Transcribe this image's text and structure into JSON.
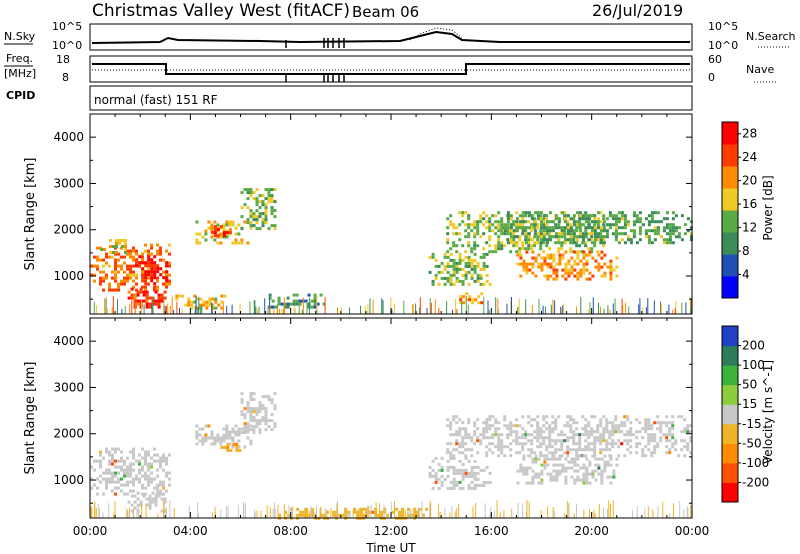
{
  "header": {
    "station": "Christmas Valley West (fitACF)",
    "beam": "Beam 06",
    "date": "26/Jul/2019"
  },
  "panels": {
    "nsky": {
      "label": "N.Sky",
      "tick_top": "10^5",
      "tick_bottom": "10^0",
      "right_label": "N.Search",
      "right_tick_top": "10^5",
      "right_tick_bottom": "10^0"
    },
    "freq": {
      "label_line1": "Freq.",
      "label_line2": "[MHz]",
      "tick_top": "18",
      "tick_bottom": "8",
      "right_label": "Nave",
      "right_tick_top": "60",
      "right_tick_bottom": "0"
    },
    "cpid": {
      "label": "CPID",
      "value": "normal (fast) 151 RF"
    }
  },
  "chart_data": [
    {
      "type": "heatmap",
      "name": "power",
      "xlabel": "",
      "ylabel": "Slant Range [km]",
      "x_range_hours": [
        0,
        24
      ],
      "ylim_km": [
        180,
        4500
      ],
      "y_ticks": [
        1000,
        2000,
        3000,
        4000
      ],
      "colorbar": {
        "label": "Power [dB]",
        "ticks": [
          4,
          8,
          12,
          16,
          20,
          24,
          28
        ],
        "range": [
          0,
          30
        ],
        "colors": [
          "#0000ff",
          "#2050b4",
          "#3c8c5a",
          "#5aaa46",
          "#f0c828",
          "#ff8c00",
          "#ff3c00",
          "#ff0000"
        ]
      },
      "regions": [
        {
          "t0": 0.0,
          "t1": 3.2,
          "r0": 700,
          "r1": 1700,
          "level": 22
        },
        {
          "t0": 1.8,
          "t1": 3.0,
          "r0": 850,
          "r1": 1450,
          "level": 28
        },
        {
          "t0": 0.4,
          "t1": 1.4,
          "r0": 1500,
          "r1": 1800,
          "level": 16
        },
        {
          "t0": 1.5,
          "t1": 3.0,
          "r0": 330,
          "r1": 750,
          "level": 26
        },
        {
          "t0": 3.4,
          "t1": 5.4,
          "r0": 320,
          "r1": 600,
          "level": 18
        },
        {
          "t0": 4.2,
          "t1": 6.4,
          "r0": 1700,
          "r1": 2200,
          "level": 18
        },
        {
          "t0": 4.7,
          "t1": 5.6,
          "r0": 1850,
          "r1": 2100,
          "level": 26
        },
        {
          "t0": 6.0,
          "t1": 7.4,
          "r0": 2000,
          "r1": 2900,
          "level": 14
        },
        {
          "t0": 7.0,
          "t1": 9.5,
          "r0": 300,
          "r1": 620,
          "level": 10
        },
        {
          "t0": 13.5,
          "t1": 16.0,
          "r0": 800,
          "r1": 1500,
          "level": 14
        },
        {
          "t0": 14.6,
          "t1": 15.6,
          "r0": 400,
          "r1": 650,
          "level": 20
        },
        {
          "t0": 14.2,
          "t1": 20.5,
          "r0": 1550,
          "r1": 2400,
          "level": 14
        },
        {
          "t0": 17.0,
          "t1": 21.0,
          "r0": 950,
          "r1": 1550,
          "level": 20
        },
        {
          "t0": 16.5,
          "t1": 24.0,
          "r0": 1700,
          "r1": 2400,
          "level": 12
        }
      ]
    },
    {
      "type": "heatmap",
      "name": "velocity",
      "xlabel": "Time UT",
      "ylabel": "Slant Range [km]",
      "x_range_hours": [
        0,
        24
      ],
      "x_tick_labels": [
        "00:00",
        "04:00",
        "08:00",
        "12:00",
        "16:00",
        "20:00",
        "00:00"
      ],
      "ylim_km": [
        180,
        4500
      ],
      "y_ticks": [
        1000,
        2000,
        3000,
        4000
      ],
      "colorbar": {
        "label": "Velocity [m s^-1]",
        "ticks": [
          200,
          100,
          50,
          15,
          -15,
          -50,
          -100,
          -200
        ],
        "range": [
          -250,
          250
        ],
        "colors": [
          "#2040c8",
          "#2e7d5a",
          "#3cb43c",
          "#8ccd3c",
          "#c8c8c8",
          "#f0b428",
          "#ff8c00",
          "#ff5000",
          "#ff0000"
        ]
      },
      "regions": [
        {
          "t0": 0.0,
          "t1": 3.2,
          "r0": 700,
          "r1": 1700,
          "level": 0
        },
        {
          "t0": 1.5,
          "t1": 3.0,
          "r0": 330,
          "r1": 750,
          "level": 0
        },
        {
          "t0": 4.2,
          "t1": 6.4,
          "r0": 1700,
          "r1": 2200,
          "level": 0
        },
        {
          "t0": 5.2,
          "t1": 6.0,
          "r0": 1650,
          "r1": 1800,
          "level": -80
        },
        {
          "t0": 6.0,
          "t1": 7.4,
          "r0": 2000,
          "r1": 2900,
          "level": 0
        },
        {
          "t0": 7.5,
          "t1": 13.5,
          "r0": 200,
          "r1": 400,
          "level": -40
        },
        {
          "t0": 13.5,
          "t1": 16.0,
          "r0": 800,
          "r1": 1500,
          "level": 0
        },
        {
          "t0": 14.2,
          "t1": 24.0,
          "r0": 1500,
          "r1": 2400,
          "level": 0
        },
        {
          "t0": 17.0,
          "t1": 21.0,
          "r0": 950,
          "r1": 1550,
          "level": 0
        }
      ]
    }
  ]
}
